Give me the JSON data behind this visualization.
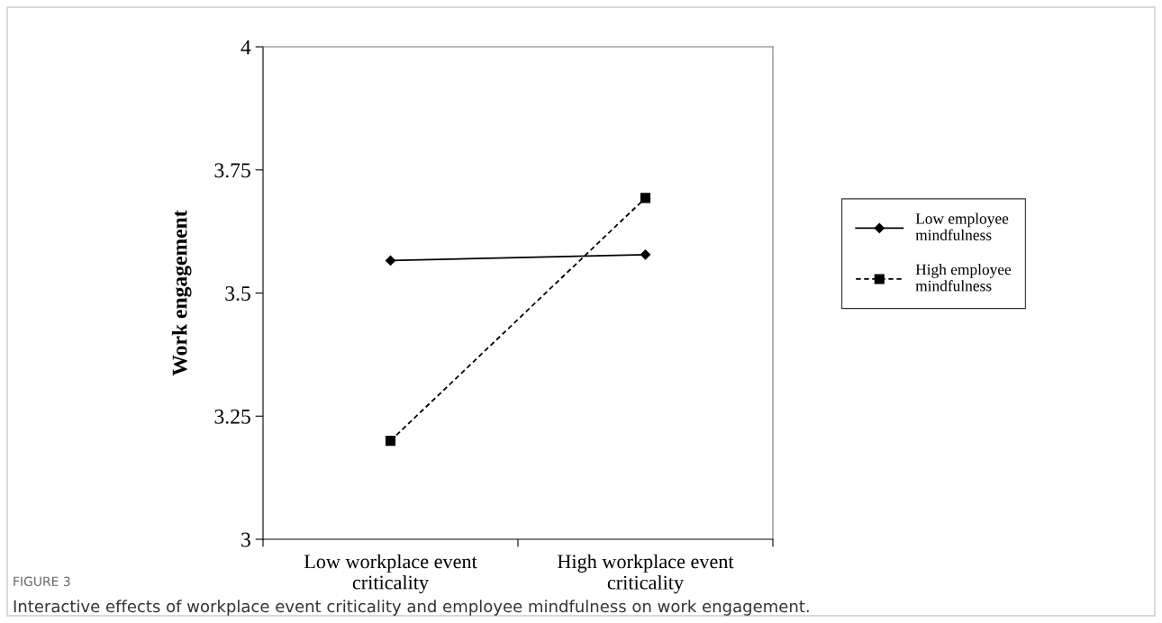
{
  "chart_data": {
    "type": "line",
    "ylabel": "Work engagement",
    "categories": [
      "Low workplace event\ncriticality",
      "High workplace event\ncriticality"
    ],
    "series": [
      {
        "name": "Low employee\nmindfulness",
        "color": "#000000",
        "values": [
          3.566,
          3.578
        ],
        "marker": "diamond",
        "line_style": "solid"
      },
      {
        "name": "High employee\nmindfulness",
        "color": "#000000",
        "values": [
          3.2,
          3.693
        ],
        "marker": "square",
        "line_style": "dashed"
      }
    ],
    "ylim": [
      3,
      4
    ],
    "yticks": [
      3,
      3.25,
      3.5,
      3.75,
      4
    ],
    "grid": false,
    "legend": "right",
    "annotations": [
      "FIGURE 3",
      "Interactive effects of workplace event criticality and employee mindfulness on work engagement."
    ]
  }
}
